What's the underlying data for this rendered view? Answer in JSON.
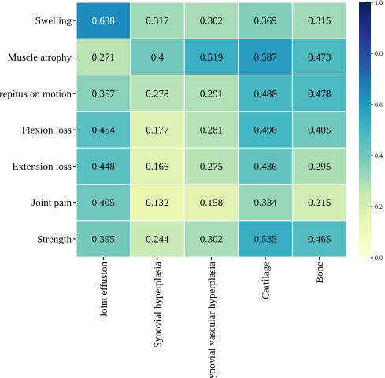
{
  "chart_data": {
    "type": "heatmap",
    "title": "",
    "xlabel": "",
    "ylabel": "",
    "rows": [
      "Swelling",
      "Muscle atrophy",
      "Crepitus on motion",
      "Flexion loss",
      "Extension loss",
      "Joint pain",
      "Strength"
    ],
    "columns": [
      "Joint effusion",
      "Synovial hyperplasia",
      "Synovial vascular hyperplasia",
      "Cartilage",
      "Bone"
    ],
    "values": [
      [
        0.638,
        0.317,
        0.302,
        0.369,
        0.315
      ],
      [
        0.271,
        0.4,
        0.519,
        0.587,
        0.473
      ],
      [
        0.357,
        0.278,
        0.291,
        0.488,
        0.478
      ],
      [
        0.454,
        0.177,
        0.281,
        0.496,
        0.405
      ],
      [
        0.448,
        0.166,
        0.275,
        0.436,
        0.295
      ],
      [
        0.405,
        0.132,
        0.158,
        0.334,
        0.215
      ],
      [
        0.395,
        0.244,
        0.302,
        0.535,
        0.465
      ]
    ],
    "value_labels": [
      [
        "0.638",
        "0.317",
        "0.302",
        "0.369",
        "0.315"
      ],
      [
        "0.271",
        "0.4",
        "0.519",
        "0.587",
        "0.473"
      ],
      [
        "0.357",
        "0.278",
        "0.291",
        "0.488",
        "0.478"
      ],
      [
        "0.454",
        "0.177",
        "0.281",
        "0.496",
        "0.405"
      ],
      [
        "0.448",
        "0.166",
        "0.275",
        "0.436",
        "0.295"
      ],
      [
        "0.405",
        "0.132",
        "0.158",
        "0.334",
        "0.215"
      ],
      [
        "0.395",
        "0.244",
        "0.302",
        "0.535",
        "0.465"
      ]
    ],
    "colormap": "YlGnBu",
    "colorbar": {
      "range": [
        0.0,
        1.0
      ],
      "ticks": [
        0.0,
        0.2,
        0.4,
        0.6,
        0.8,
        1.0
      ],
      "tick_labels": [
        "0.0",
        "0.2",
        "0.4",
        "0.6",
        "0.8",
        "1.0"
      ],
      "placement": "right"
    },
    "colors": {
      "cell_border": "#ffffff",
      "text_dark": "#000000",
      "text_light": "#ffffff"
    },
    "grid": false
  }
}
